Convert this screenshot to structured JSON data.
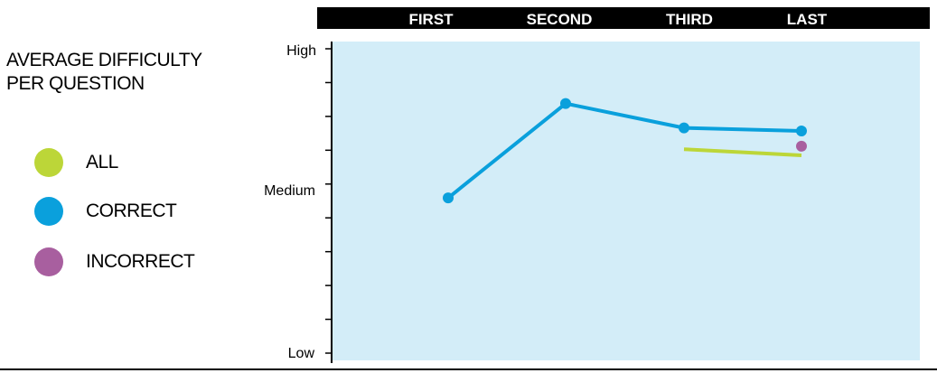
{
  "chart_data": {
    "type": "line",
    "title": "AVERAGE DIFFICULTY PER QUESTION",
    "categories": [
      "FIRST",
      "SECOND",
      "THIRD",
      "LAST"
    ],
    "y_tick_labels": [
      "High",
      "Medium",
      "Low"
    ],
    "ylim": [
      0,
      100
    ],
    "legend_position": "left",
    "grid": false,
    "series": [
      {
        "name": "ALL",
        "color": "#bcd638",
        "values": [
          null,
          null,
          67,
          65
        ],
        "show_marker": false
      },
      {
        "name": "CORRECT",
        "color": "#0aa0dc",
        "values": [
          51,
          82,
          74,
          73
        ],
        "show_marker": true
      },
      {
        "name": "INCORRECT",
        "color": "#a85f9f",
        "values": [
          null,
          null,
          null,
          68
        ],
        "show_marker": true
      }
    ]
  }
}
